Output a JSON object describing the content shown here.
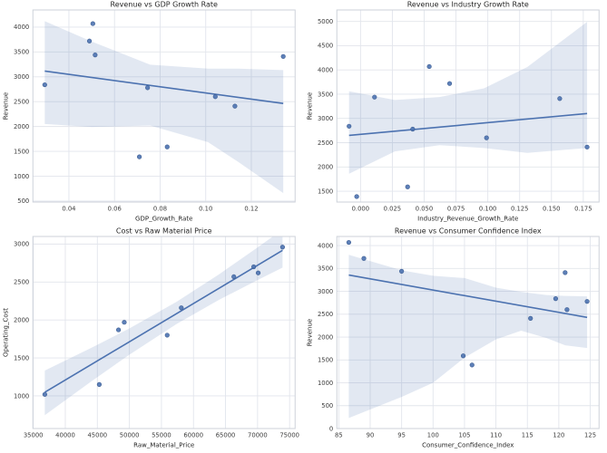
{
  "figure": {
    "background": "#ffffff",
    "accent_color": "#4c72b0",
    "point_edge_color": "#3b5c91",
    "band_opacity": 0.16,
    "grid_color": "#e2e5ec",
    "spine_color": "#cdd2da",
    "text_color": "#262626",
    "tick_color": "#3d3d3d"
  },
  "chart_data": [
    {
      "type": "scatter",
      "title": "Revenue vs GDP Growth Rate",
      "xlabel": "GDP_Growth_Rate",
      "ylabel": "Revenue",
      "xlim": [
        0.0242,
        0.1392
      ],
      "ylim": [
        480,
        4345
      ],
      "xticks": {
        "values": [
          0.04,
          0.06,
          0.08,
          0.1,
          0.12
        ],
        "labels": [
          "0.04",
          "0.06",
          "0.08",
          "0.10",
          "0.12"
        ]
      },
      "yticks": {
        "values": [
          500,
          1000,
          1500,
          2000,
          2500,
          3000,
          3500,
          4000
        ],
        "labels": [
          "500",
          "1000",
          "1500",
          "2000",
          "2500",
          "3000",
          "3500",
          "4000"
        ]
      },
      "points": [
        [
          0.0294,
          2840
        ],
        [
          0.049,
          3720
        ],
        [
          0.0505,
          4070
        ],
        [
          0.0515,
          3440
        ],
        [
          0.0709,
          1390
        ],
        [
          0.0745,
          2780
        ],
        [
          0.0831,
          1590
        ],
        [
          0.1042,
          2600
        ],
        [
          0.1128,
          2410
        ],
        [
          0.134,
          3410
        ]
      ],
      "regression_line": true,
      "ci_level": 95,
      "ci_band": [
        [
          0.0294,
          2050,
          4120
        ],
        [
          0.05,
          1990,
          3710
        ],
        [
          0.0756,
          2020,
          3245
        ],
        [
          0.101,
          1685,
          3165
        ],
        [
          0.114,
          1295,
          3165
        ],
        [
          0.134,
          660,
          3135
        ]
      ],
      "grid": true,
      "legend": null
    },
    {
      "type": "scatter",
      "title": "Revenue vs Industry Growth Rate",
      "xlabel": "Industry_Revenue_Growth_Rate",
      "ylabel": "Revenue",
      "xlim": [
        -0.0186,
        0.1874
      ],
      "ylim": [
        1277,
        5236
      ],
      "xticks": {
        "values": [
          0.0,
          0.025,
          0.05,
          0.075,
          0.1,
          0.125,
          0.15,
          0.175
        ],
        "labels": [
          "0.000",
          "0.025",
          "0.050",
          "0.075",
          "0.100",
          "0.125",
          "0.150",
          "0.175"
        ]
      },
      "yticks": {
        "values": [
          1500,
          2000,
          2500,
          3000,
          3500,
          4000,
          4500,
          5000
        ],
        "labels": [
          "1500",
          "2000",
          "2500",
          "3000",
          "3500",
          "4000",
          "4500",
          "5000"
        ]
      },
      "points": [
        [
          -0.009,
          2840
        ],
        [
          -0.003,
          1390
        ],
        [
          0.011,
          3440
        ],
        [
          0.037,
          1590
        ],
        [
          0.041,
          2780
        ],
        [
          0.054,
          4070
        ],
        [
          0.07,
          3720
        ],
        [
          0.099,
          2600
        ],
        [
          0.1565,
          3410
        ],
        [
          0.178,
          2410
        ]
      ],
      "regression_line": true,
      "ci_level": 95,
      "ci_band": [
        [
          -0.009,
          1860,
          3560
        ],
        [
          0.027,
          2320,
          3380
        ],
        [
          0.062,
          2450,
          3440
        ],
        [
          0.097,
          2390,
          3620
        ],
        [
          0.131,
          2290,
          4060
        ],
        [
          0.178,
          2390,
          4990
        ]
      ],
      "grid": true,
      "legend": null
    },
    {
      "type": "scatter",
      "title": "Cost vs Raw Material Price",
      "xlabel": "Raw_Material_Price",
      "ylabel": "Operating_Cost",
      "xlim": [
        34940,
        75860
      ],
      "ylim": [
        570,
        3100
      ],
      "xticks": {
        "values": [
          35000,
          40000,
          45000,
          50000,
          55000,
          60000,
          65000,
          70000,
          75000
        ],
        "labels": [
          "35000",
          "40000",
          "45000",
          "50000",
          "55000",
          "60000",
          "65000",
          "70000",
          "75000"
        ]
      },
      "yticks": {
        "values": [
          1000,
          1500,
          2000,
          2500,
          3000
        ],
        "labels": [
          "1000",
          "1500",
          "2000",
          "2500",
          "3000"
        ]
      },
      "points": [
        [
          36800,
          1020
        ],
        [
          45300,
          1150
        ],
        [
          48300,
          1870
        ],
        [
          49200,
          1970
        ],
        [
          55900,
          1800
        ],
        [
          58100,
          2160
        ],
        [
          66300,
          2570
        ],
        [
          69400,
          2700
        ],
        [
          70100,
          2620
        ],
        [
          73900,
          2960
        ]
      ],
      "regression_line": true,
      "ci_level": 95,
      "ci_band": [
        [
          36800,
          746,
          1334
        ],
        [
          44000,
          1188,
          1630
        ],
        [
          50000,
          1543,
          1889
        ],
        [
          57360,
          1947,
          2239
        ],
        [
          64000,
          2266,
          2602
        ],
        [
          70000,
          2526,
          2956
        ],
        [
          73900,
          2690,
          3190
        ]
      ],
      "grid": true,
      "legend": null
    },
    {
      "type": "scatter",
      "title": "Revenue vs Consumer Confidence Index",
      "xlabel": "Consumer_Confidence_Index",
      "ylabel": "Revenue",
      "xlim": [
        84.7,
        126.4
      ],
      "ylim": [
        0,
        4200
      ],
      "xticks": {
        "values": [
          85,
          90,
          95,
          100,
          105,
          110,
          115,
          120,
          125
        ],
        "labels": [
          "85",
          "90",
          "95",
          "100",
          "105",
          "110",
          "115",
          "120",
          "125"
        ]
      },
      "yticks": {
        "values": [
          0,
          500,
          1000,
          1500,
          2000,
          2500,
          3000,
          3500,
          4000
        ],
        "labels": [
          "0",
          "500",
          "1000",
          "1500",
          "2000",
          "2500",
          "3000",
          "3500",
          "4000"
        ]
      },
      "points": [
        [
          86.6,
          4070
        ],
        [
          89,
          3720
        ],
        [
          95,
          3440
        ],
        [
          104.8,
          1590
        ],
        [
          106.2,
          1390
        ],
        [
          115.5,
          2410
        ],
        [
          119.5,
          2840
        ],
        [
          121,
          3410
        ],
        [
          121.3,
          2600
        ],
        [
          124.5,
          2780
        ]
      ],
      "regression_line": true,
      "ci_level": 95,
      "ci_band": [
        [
          86.6,
          230,
          3800
        ],
        [
          95,
          690,
          3460
        ],
        [
          100,
          1000,
          3340
        ],
        [
          105,
          1550,
          3290
        ],
        [
          110,
          1950,
          3080
        ],
        [
          114,
          2140,
          2990
        ],
        [
          118,
          1980,
          2920
        ],
        [
          121,
          1820,
          2900
        ],
        [
          124.5,
          1760,
          2890
        ]
      ],
      "grid": true,
      "legend": null
    }
  ]
}
